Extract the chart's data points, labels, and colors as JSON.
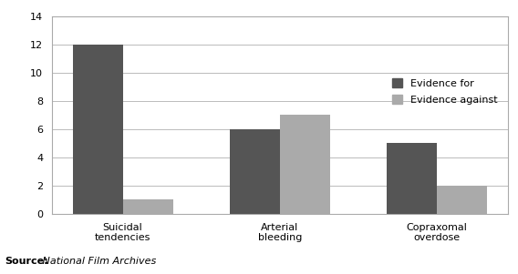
{
  "categories": [
    "Suicidal\ntendencies",
    "Arterial\nbleeding",
    "Copraxomal\noverdose"
  ],
  "evidence_for": [
    12,
    6,
    5
  ],
  "evidence_against": [
    1,
    7,
    2
  ],
  "color_for": "#555555",
  "color_against": "#aaaaaa",
  "legend_for": "Evidence for",
  "legend_against": "Evidence against",
  "ylim": [
    0,
    14
  ],
  "yticks": [
    0,
    2,
    4,
    6,
    8,
    10,
    12,
    14
  ],
  "bar_width": 0.32,
  "source_bold": "Source:",
  "source_italic": " National Film Archives",
  "bg_color": "#ffffff",
  "plot_bg": "#ffffff",
  "frame_color": "#aaaaaa"
}
